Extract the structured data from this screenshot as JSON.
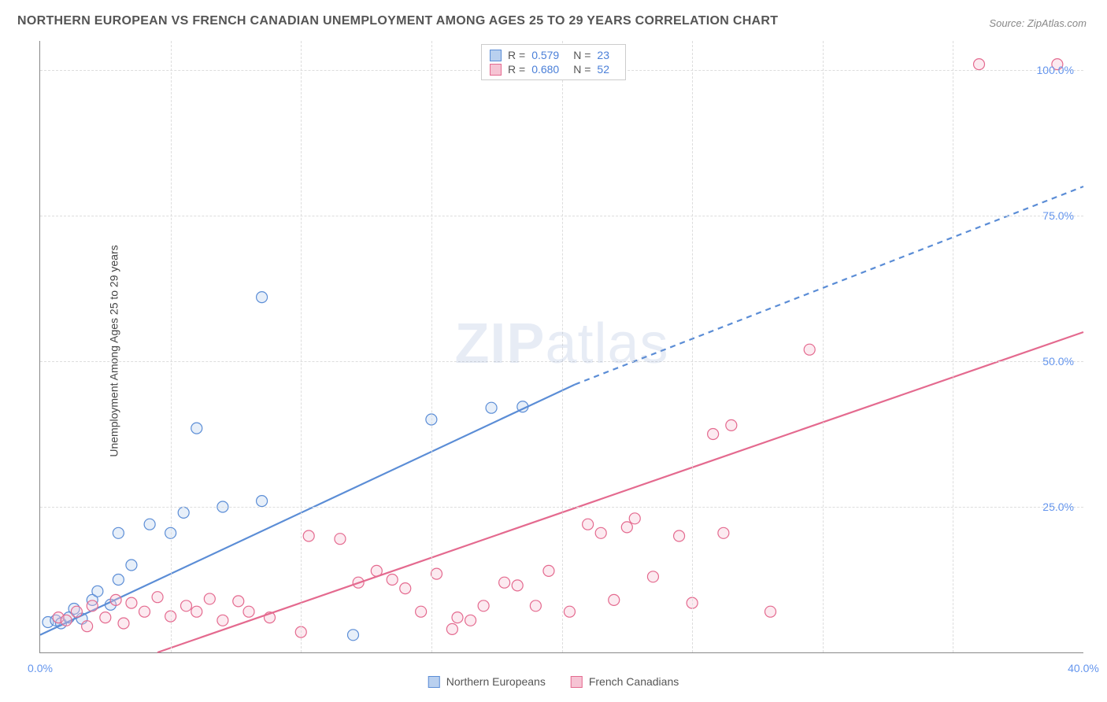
{
  "title": "NORTHERN EUROPEAN VS FRENCH CANADIAN UNEMPLOYMENT AMONG AGES 25 TO 29 YEARS CORRELATION CHART",
  "source_label": "Source:",
  "source_value": "ZipAtlas.com",
  "y_axis_title": "Unemployment Among Ages 25 to 29 years",
  "watermark_zip": "ZIP",
  "watermark_atlas": "atlas",
  "chart": {
    "type": "scatter",
    "background_color": "#ffffff",
    "grid_color": "#dddddd",
    "axis_color": "#888888",
    "xlim": [
      0,
      40
    ],
    "ylim": [
      0,
      105
    ],
    "xticks": [
      0,
      40
    ],
    "xtick_labels": [
      "0.0%",
      "40.0%"
    ],
    "yticks": [
      25,
      50,
      75,
      100
    ],
    "ytick_labels": [
      "25.0%",
      "50.0%",
      "75.0%",
      "100.0%"
    ],
    "title_color": "#555555",
    "tick_label_color": "#6495ed",
    "tick_fontsize": 14,
    "title_fontsize": 16,
    "marker_radius": 7,
    "marker_fill_opacity": 0.35,
    "series": [
      {
        "name": "Northern Europeans",
        "color_stroke": "#5b8dd6",
        "color_fill": "#b9d0ef",
        "R": "0.579",
        "N": "23",
        "trend": {
          "x1": 0,
          "y1": 3,
          "x2": 20.5,
          "y2": 46,
          "dash_from_x": 20.5,
          "x2_ext": 40,
          "y2_ext": 80
        },
        "points": [
          [
            0.3,
            5.2
          ],
          [
            0.6,
            5.5
          ],
          [
            0.8,
            5.0
          ],
          [
            1.1,
            6.0
          ],
          [
            1.3,
            7.5
          ],
          [
            1.6,
            5.8
          ],
          [
            2.0,
            9.0
          ],
          [
            2.2,
            10.5
          ],
          [
            2.7,
            8.2
          ],
          [
            3.0,
            12.5
          ],
          [
            3.5,
            15.0
          ],
          [
            3.0,
            20.5
          ],
          [
            4.2,
            22.0
          ],
          [
            5.0,
            20.5
          ],
          [
            5.5,
            24.0
          ],
          [
            7.0,
            25.0
          ],
          [
            8.5,
            26.0
          ],
          [
            6.0,
            38.5
          ],
          [
            8.5,
            61.0
          ],
          [
            12.0,
            3.0
          ],
          [
            15.0,
            40.0
          ],
          [
            17.3,
            42.0
          ],
          [
            18.5,
            42.2
          ]
        ]
      },
      {
        "name": "French Canadians",
        "color_stroke": "#e46a8f",
        "color_fill": "#f6c4d4",
        "R": "0.680",
        "N": "52",
        "trend": {
          "x1": 4.5,
          "y1": 0,
          "x2": 40,
          "y2": 55,
          "dash_from_x": 40,
          "x2_ext": 40,
          "y2_ext": 55
        },
        "points": [
          [
            0.7,
            6.0
          ],
          [
            1.0,
            5.5
          ],
          [
            1.4,
            7.0
          ],
          [
            1.8,
            4.5
          ],
          [
            2.0,
            8.0
          ],
          [
            2.5,
            6.0
          ],
          [
            2.9,
            9.0
          ],
          [
            3.2,
            5.0
          ],
          [
            3.5,
            8.5
          ],
          [
            4.0,
            7.0
          ],
          [
            4.5,
            9.5
          ],
          [
            5.0,
            6.2
          ],
          [
            5.6,
            8.0
          ],
          [
            6.0,
            7.0
          ],
          [
            6.5,
            9.2
          ],
          [
            7.0,
            5.5
          ],
          [
            7.6,
            8.8
          ],
          [
            8.0,
            7.0
          ],
          [
            8.8,
            6.0
          ],
          [
            10.0,
            3.5
          ],
          [
            10.3,
            20.0
          ],
          [
            11.5,
            19.5
          ],
          [
            12.2,
            12.0
          ],
          [
            12.9,
            14.0
          ],
          [
            13.5,
            12.5
          ],
          [
            14.0,
            11.0
          ],
          [
            14.6,
            7.0
          ],
          [
            15.2,
            13.5
          ],
          [
            16.0,
            6.0
          ],
          [
            16.5,
            5.5
          ],
          [
            17.0,
            8.0
          ],
          [
            17.8,
            12.0
          ],
          [
            18.3,
            11.5
          ],
          [
            19.0,
            8.0
          ],
          [
            19.5,
            14.0
          ],
          [
            20.3,
            7.0
          ],
          [
            21.0,
            22.0
          ],
          [
            21.5,
            20.5
          ],
          [
            22.0,
            9.0
          ],
          [
            22.8,
            23.0
          ],
          [
            23.5,
            13.0
          ],
          [
            24.5,
            20.0
          ],
          [
            25.0,
            8.5
          ],
          [
            25.8,
            37.5
          ],
          [
            26.5,
            39.0
          ],
          [
            28.0,
            7.0
          ],
          [
            29.5,
            52.0
          ],
          [
            26.2,
            20.5
          ],
          [
            22.5,
            21.5
          ],
          [
            15.8,
            4.0
          ],
          [
            36.0,
            101.0
          ],
          [
            39.0,
            101.0
          ]
        ]
      }
    ]
  },
  "stats_box": {
    "r_label": "R =",
    "n_label": "N ="
  }
}
